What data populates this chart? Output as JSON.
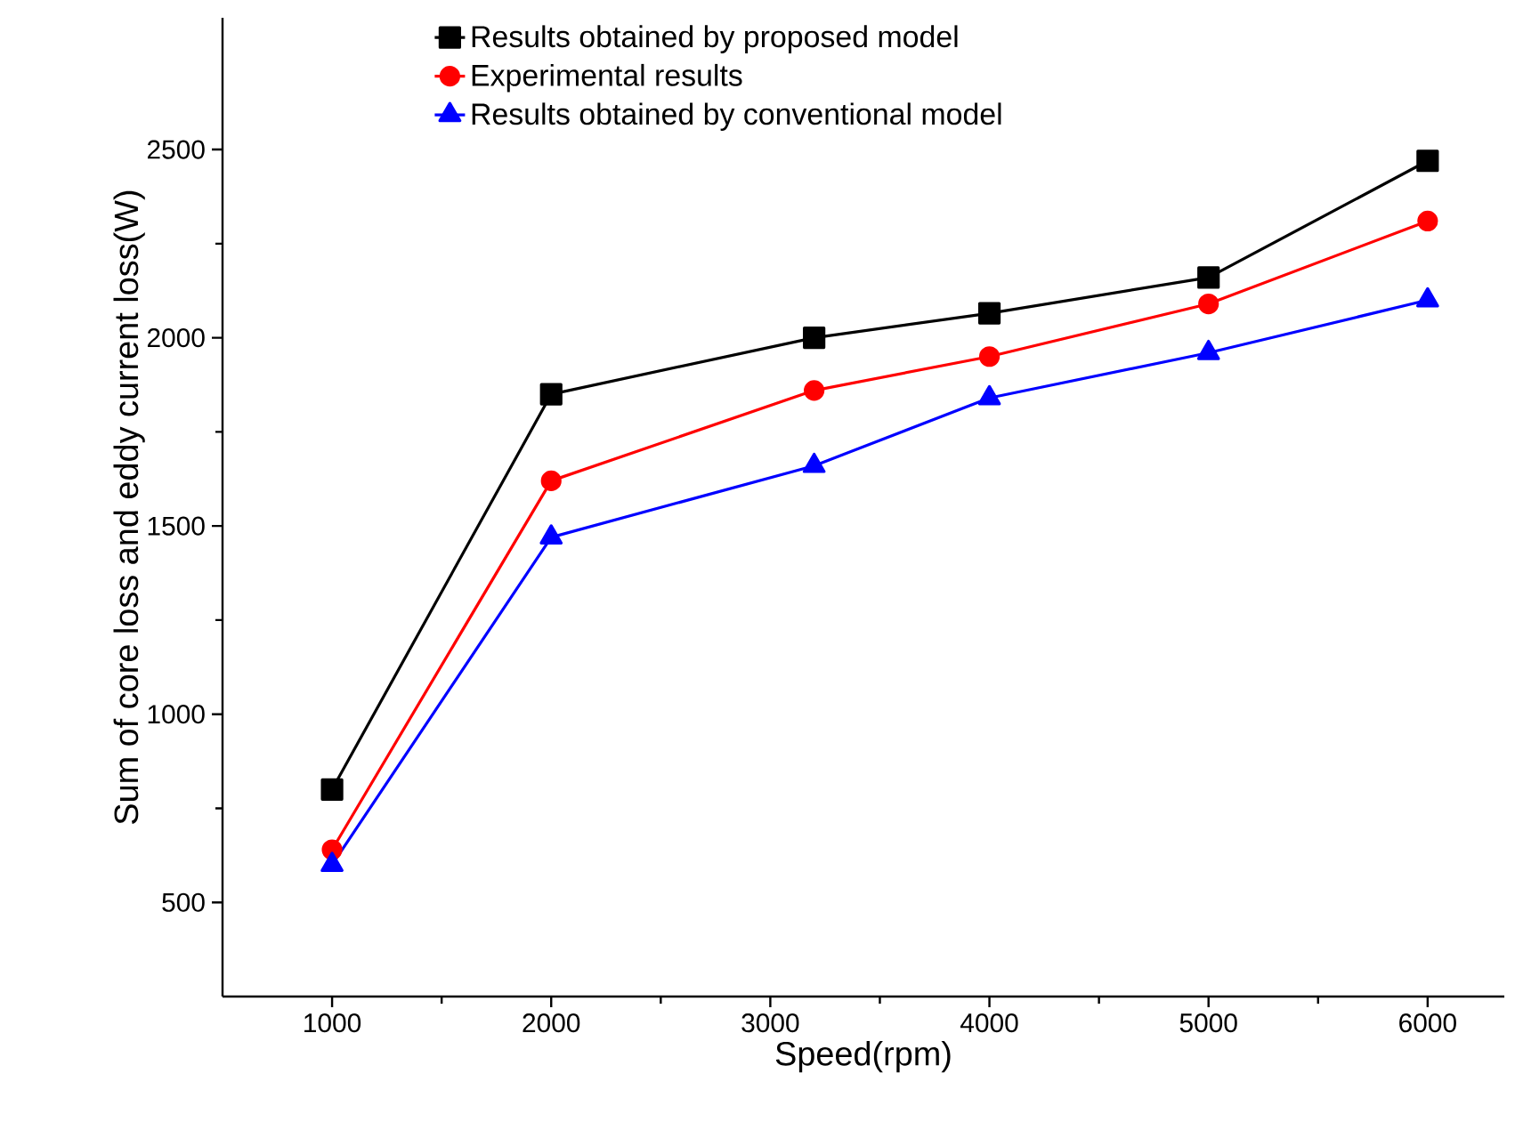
{
  "chart_data": {
    "type": "line",
    "xlabel": "Speed(rpm)",
    "ylabel": "Sum of core loss and eddy current loss(W)",
    "x": [
      1000,
      2000,
      3200,
      4000,
      5000,
      6000
    ],
    "series": [
      {
        "name": "Results obtained by proposed model",
        "color": "#000000",
        "marker": "square",
        "values": [
          800,
          1850,
          2000,
          2065,
          2160,
          2470
        ]
      },
      {
        "name": "Experimental results",
        "color": "#ff0000",
        "marker": "circle",
        "values": [
          640,
          1620,
          1860,
          1950,
          2090,
          2310
        ]
      },
      {
        "name": "Results obtained by conventional model",
        "color": "#0000ff",
        "marker": "triangle",
        "values": [
          600,
          1470,
          1660,
          1840,
          1960,
          2100
        ]
      }
    ],
    "xlim": [
      500,
      6350
    ],
    "ylim": [
      250,
      2850
    ],
    "xticks": [
      1000,
      2000,
      3000,
      4000,
      5000,
      6000
    ],
    "yticks": [
      500,
      1000,
      1500,
      2000,
      2500
    ],
    "grid": false,
    "legend": "top",
    "line_style": "solid"
  }
}
